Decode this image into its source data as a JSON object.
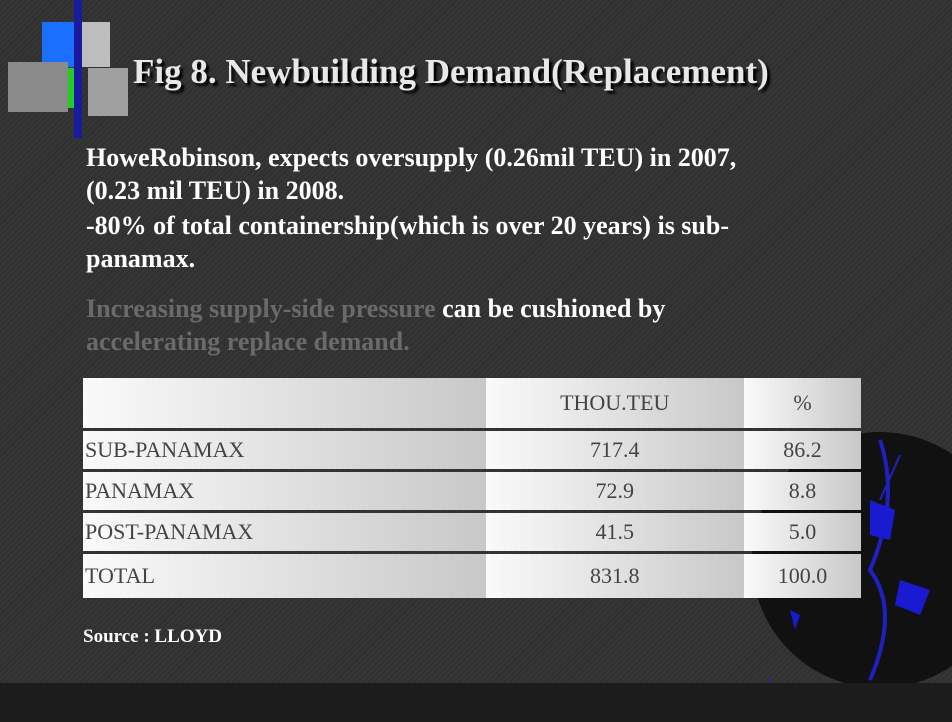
{
  "header": {
    "title": "Fig 8. Newbuilding Demand(Replacement)"
  },
  "body": {
    "lines": [
      "HoweRobinson, expects oversupply (0.26mil TEU) in 2007,",
      "(0.23 mil TEU) in 2008.",
      "-80% of total containership(which is over 20 years) is sub-",
      "panamax."
    ],
    "highlight": {
      "start": "Increasing supply-side pressure",
      "middle": " can be cushioned by",
      "end": "accelerating replace demand."
    }
  },
  "table": {
    "columns": [
      "",
      "THOU.TEU",
      "%"
    ],
    "rows": [
      [
        "SUB-PANAMAX",
        "717.4",
        "86.2"
      ],
      [
        "PANAMAX",
        "72.9",
        "8.8"
      ],
      [
        "POST-PANAMAX",
        "41.5",
        "5.0"
      ],
      [
        "TOTAL",
        "831.8",
        "100.0"
      ]
    ]
  },
  "footer": {
    "source": "Source : LLOYD"
  }
}
